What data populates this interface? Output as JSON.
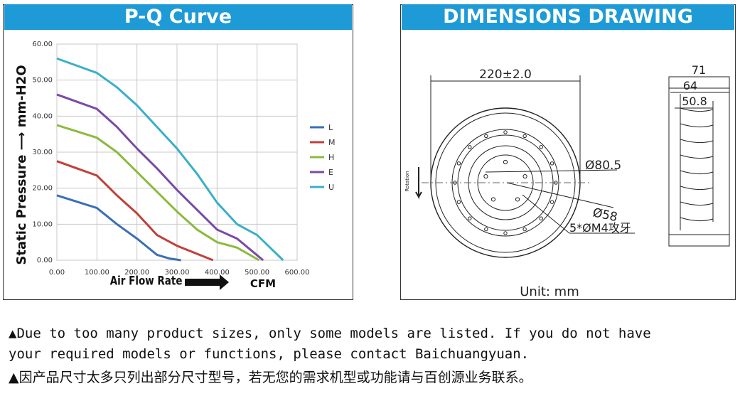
{
  "pq": {
    "title": "P-Q Curve",
    "ylabel": "Static Pressure ⟶ mm-H2O",
    "xlabel": "Air Flow Rate",
    "xunit": "CFM",
    "colors": {
      "L": "#3a6fb5",
      "M": "#c0403a",
      "H": "#8bba3c",
      "E": "#7a4aa6",
      "U": "#3aafc8"
    }
  },
  "chart_data": {
    "type": "line",
    "title": "P-Q Curve",
    "xlabel": "Air Flow Rate",
    "ylabel": "Static Pressure ⟶ mm-H2O",
    "xlim": [
      0,
      600
    ],
    "ylim": [
      0,
      60
    ],
    "xticks": [
      "0.00",
      "100.00",
      "200.00",
      "300.00",
      "400.00",
      "500.00",
      "600.00"
    ],
    "yticks": [
      "0.00",
      "10.00",
      "20.00",
      "30.00",
      "40.00",
      "50.00",
      "60.00"
    ],
    "grid": true,
    "legend": "right",
    "series": [
      {
        "name": "L",
        "x": [
          0,
          100,
          150,
          200,
          250,
          280,
          310
        ],
        "y": [
          18,
          14.5,
          10,
          6,
          1.5,
          0.5,
          0
        ]
      },
      {
        "name": "M",
        "x": [
          0,
          100,
          150,
          200,
          250,
          300,
          390
        ],
        "y": [
          27.5,
          23.5,
          18,
          13,
          7,
          4,
          0
        ]
      },
      {
        "name": "H",
        "x": [
          0,
          100,
          150,
          200,
          250,
          300,
          350,
          400,
          450,
          505
        ],
        "y": [
          37.5,
          34,
          30,
          24.5,
          19,
          13.5,
          8.5,
          5,
          3.5,
          0
        ]
      },
      {
        "name": "E",
        "x": [
          0,
          100,
          150,
          200,
          250,
          300,
          350,
          400,
          450,
          515
        ],
        "y": [
          46,
          42,
          37,
          31,
          25.5,
          19.5,
          14,
          8.5,
          6,
          0
        ]
      },
      {
        "name": "U",
        "x": [
          0,
          100,
          150,
          200,
          250,
          300,
          350,
          400,
          450,
          500,
          565
        ],
        "y": [
          56,
          52,
          48,
          43,
          37,
          31,
          24,
          16,
          10,
          7,
          0
        ]
      }
    ]
  },
  "dims": {
    "title": "DIMENSIONS DRAWING",
    "outer_diameter": "220±2.0",
    "d1": "Ø80.5",
    "d2": "Ø58",
    "screw": "5*ØM4攻牙",
    "rotation": "Rotation",
    "w71": "71",
    "w64": "64",
    "w50": "50.8",
    "unit": "Unit: mm"
  },
  "notes": {
    "en_line1": "▲Due to too many product sizes, only some models are listed. If you do not have",
    "en_line2": "your required models or functions, please contact Baichuangyuan.",
    "cn_line": "▲因产品尺寸太多只列出部分尺寸型号，若无您的需求机型或功能请与百创源业务联系。"
  }
}
